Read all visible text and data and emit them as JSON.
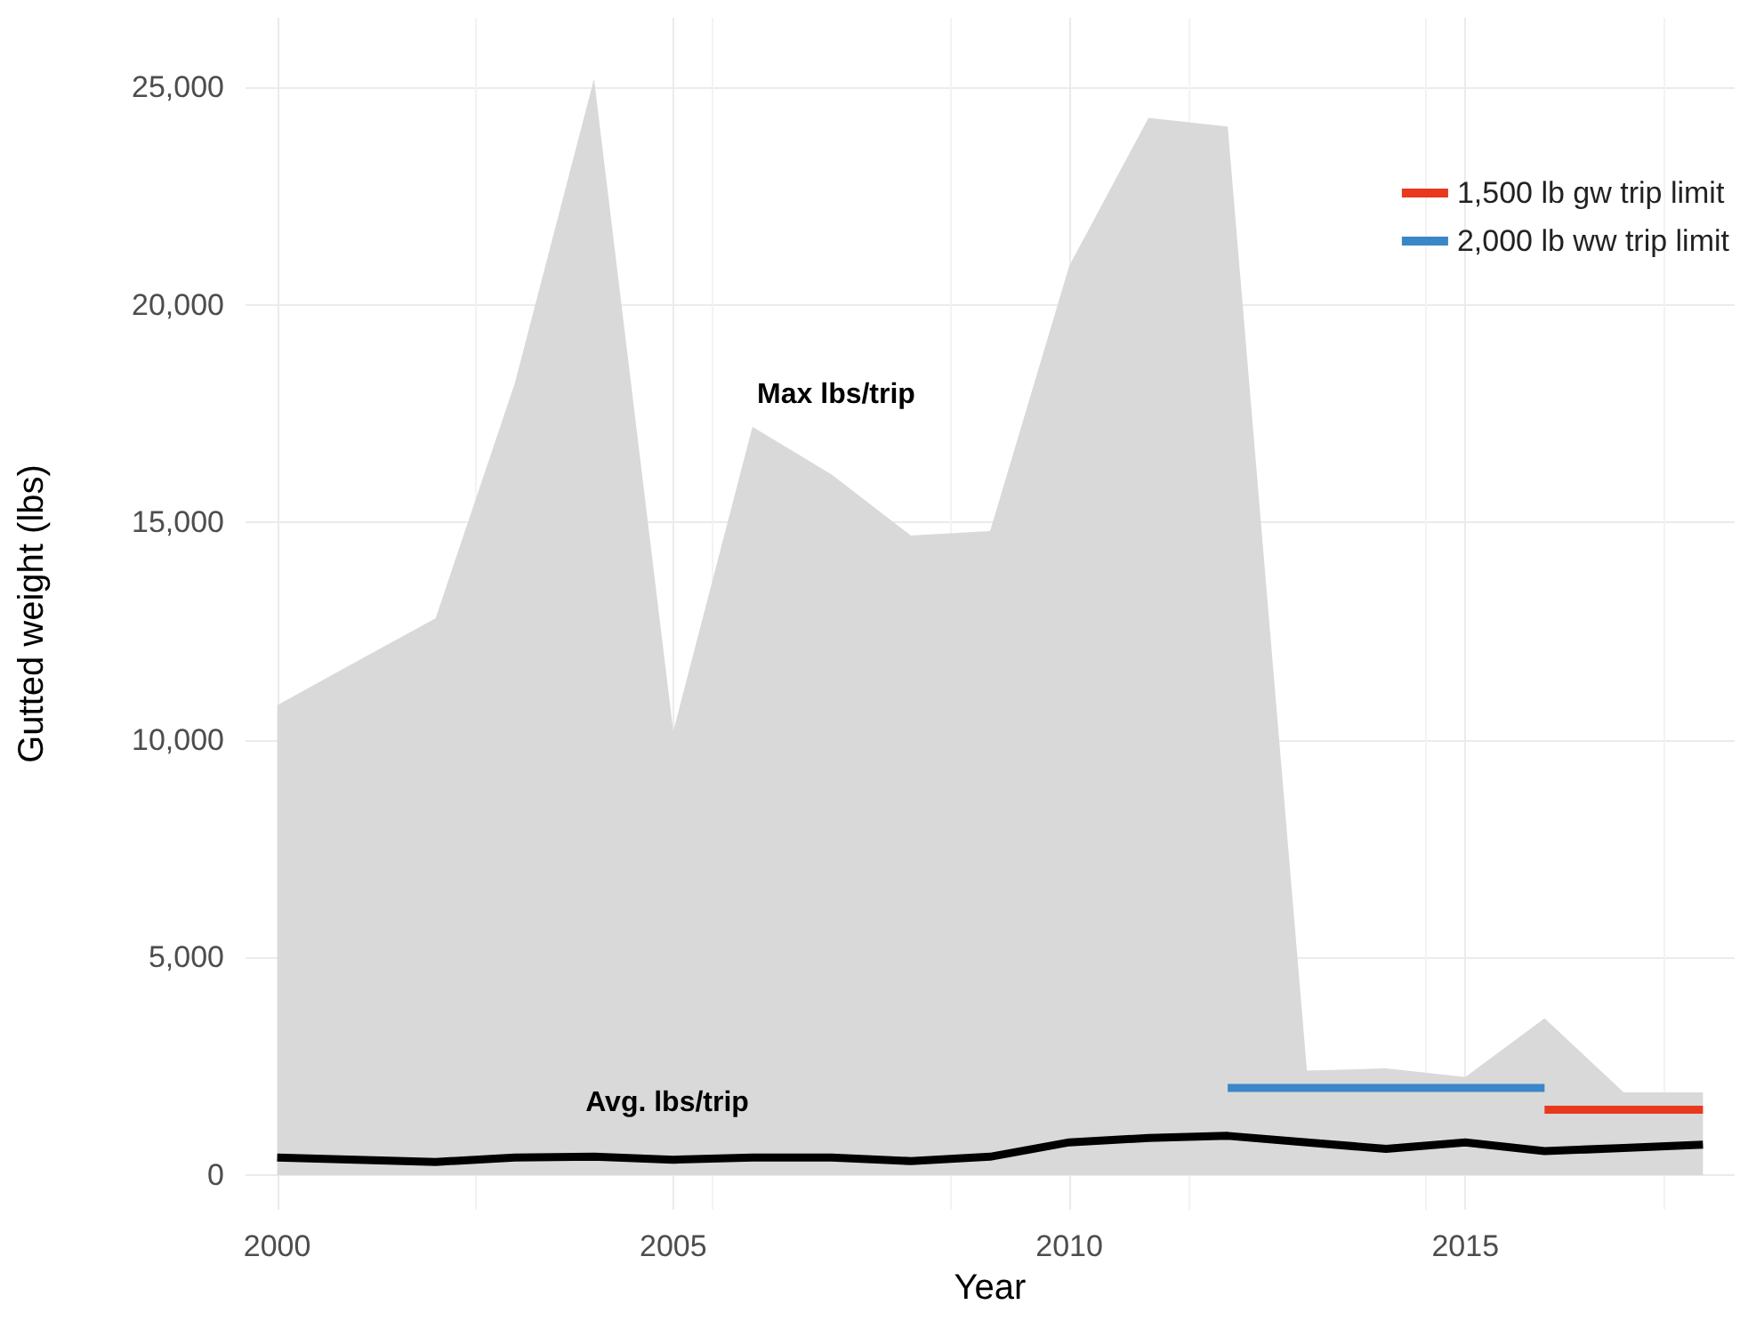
{
  "chart_data": {
    "type": "line",
    "xlabel": "Year",
    "ylabel": "Gutted weight (lbs)",
    "x": [
      2000,
      2001,
      2002,
      2003,
      2004,
      2005,
      2006,
      2007,
      2008,
      2009,
      2010,
      2011,
      2012,
      2013,
      2014,
      2015,
      2016,
      2017,
      2018
    ],
    "series": [
      {
        "type": "area",
        "color": "#d9d9d9",
        "values": [
          10800,
          11800,
          12800,
          18200,
          25200,
          10200,
          17200,
          16100,
          14700,
          14800,
          20900,
          24300,
          24100,
          2400,
          2450,
          2250,
          3600,
          1900,
          1900
        ]
      },
      {
        "color": "#000000",
        "values": [
          400,
          350,
          300,
          400,
          420,
          350,
          400,
          400,
          320,
          420,
          750,
          850,
          900,
          750,
          600,
          750,
          550,
          620,
          700
        ]
      },
      {
        "name": "1,500 lb gw trip limit",
        "color": "#e8381d",
        "x": [
          2016,
          2018
        ],
        "values": [
          1500,
          1500
        ]
      },
      {
        "name": "2,000 lb ww trip limit",
        "color": "#3a87c8",
        "x": [
          2012,
          2016
        ],
        "values": [
          2000,
          2000
        ]
      }
    ],
    "annotations": [
      "Max lbs/trip",
      "Avg. lbs/trip"
    ],
    "xlim": [
      1999.6,
      2018.4
    ],
    "xticks": [
      2000,
      2005,
      2010,
      2015
    ],
    "ylim": [
      -800,
      26600
    ],
    "yticks": [
      {
        "value": 0,
        "label": "0"
      },
      {
        "value": 5000,
        "label": "5,000"
      },
      {
        "value": 10000,
        "label": "10,000"
      },
      {
        "value": 15000,
        "label": "15,000"
      },
      {
        "value": 20000,
        "label": "20,000"
      },
      {
        "value": 25000,
        "label": "25,000"
      }
    ],
    "grid": true,
    "legend": "top right",
    "marker": "none",
    "line_style": "solid"
  }
}
